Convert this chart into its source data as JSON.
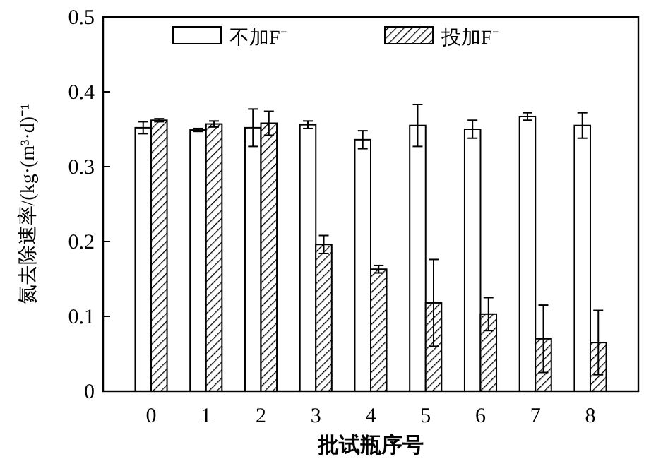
{
  "chart_data": {
    "type": "bar",
    "xlabel": "批试瓶序号",
    "ylabel": "氮去除速率/(kg·(m³·d)⁻¹",
    "categories": [
      "0",
      "1",
      "2",
      "3",
      "4",
      "5",
      "6",
      "7",
      "8"
    ],
    "series": [
      {
        "name": "不加F⁻",
        "color": "#ffffff",
        "values": [
          0.352,
          0.349,
          0.352,
          0.356,
          0.336,
          0.355,
          0.35,
          0.367,
          0.355
        ],
        "errors": [
          0.008,
          0.002,
          0.025,
          0.005,
          0.012,
          0.028,
          0.012,
          0.005,
          0.017
        ]
      },
      {
        "name": "投加F⁻",
        "color": "#000000",
        "values": [
          0.362,
          0.357,
          0.358,
          0.196,
          0.163,
          0.118,
          0.103,
          0.07,
          0.065
        ],
        "errors": [
          0.002,
          0.004,
          0.016,
          0.012,
          0.005,
          0.058,
          0.022,
          0.045,
          0.043
        ]
      }
    ],
    "ylim": [
      0,
      0.5
    ],
    "yticks": [
      {
        "value": 0,
        "label": "0"
      },
      0.1,
      0.2,
      0.3,
      0.4,
      0.5
    ],
    "legend": "top"
  }
}
